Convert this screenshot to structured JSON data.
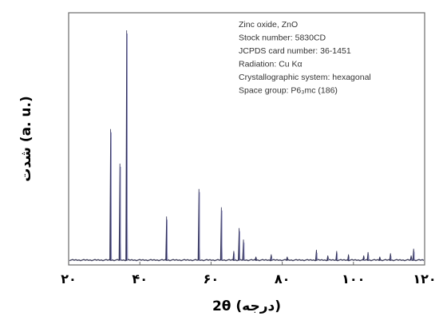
{
  "chart_data": {
    "type": "line",
    "ylabel": "شدت (a. u.)",
    "xlabel": "2θ (درجه)",
    "xlim": [
      20,
      120
    ],
    "x_tick_values": [
      20,
      40,
      60,
      80,
      100,
      120
    ],
    "x_tick_labels": [
      "۲۰",
      "۴۰",
      "۶۰",
      "۸۰",
      "۱۰۰",
      "۱۲۰"
    ],
    "annotations": [
      "Zinc oxide, ZnO",
      "Stock number: 5830CD",
      "JCPDS card number: 36-1451",
      "Radiation: Cu Kα",
      "Crystallographic system: hexagonal",
      "Space group: P6₃mc (186)"
    ],
    "series": [
      {
        "peaks": [
          {
            "x": 31.8,
            "y": 57
          },
          {
            "x": 34.4,
            "y": 42
          },
          {
            "x": 36.3,
            "y": 100
          },
          {
            "x": 47.5,
            "y": 19
          },
          {
            "x": 56.6,
            "y": 31
          },
          {
            "x": 62.9,
            "y": 23
          },
          {
            "x": 66.4,
            "y": 4
          },
          {
            "x": 67.9,
            "y": 14
          },
          {
            "x": 69.1,
            "y": 9
          },
          {
            "x": 72.6,
            "y": 1.5
          },
          {
            "x": 76.9,
            "y": 2.5
          },
          {
            "x": 81.4,
            "y": 1.5
          },
          {
            "x": 89.6,
            "y": 4.5
          },
          {
            "x": 92.8,
            "y": 2
          },
          {
            "x": 95.3,
            "y": 4
          },
          {
            "x": 98.6,
            "y": 2.5
          },
          {
            "x": 102.9,
            "y": 2
          },
          {
            "x": 104.1,
            "y": 3.5
          },
          {
            "x": 107.4,
            "y": 1.5
          },
          {
            "x": 110.4,
            "y": 3
          },
          {
            "x": 116.2,
            "y": 2
          },
          {
            "x": 116.9,
            "y": 5
          }
        ]
      }
    ]
  }
}
